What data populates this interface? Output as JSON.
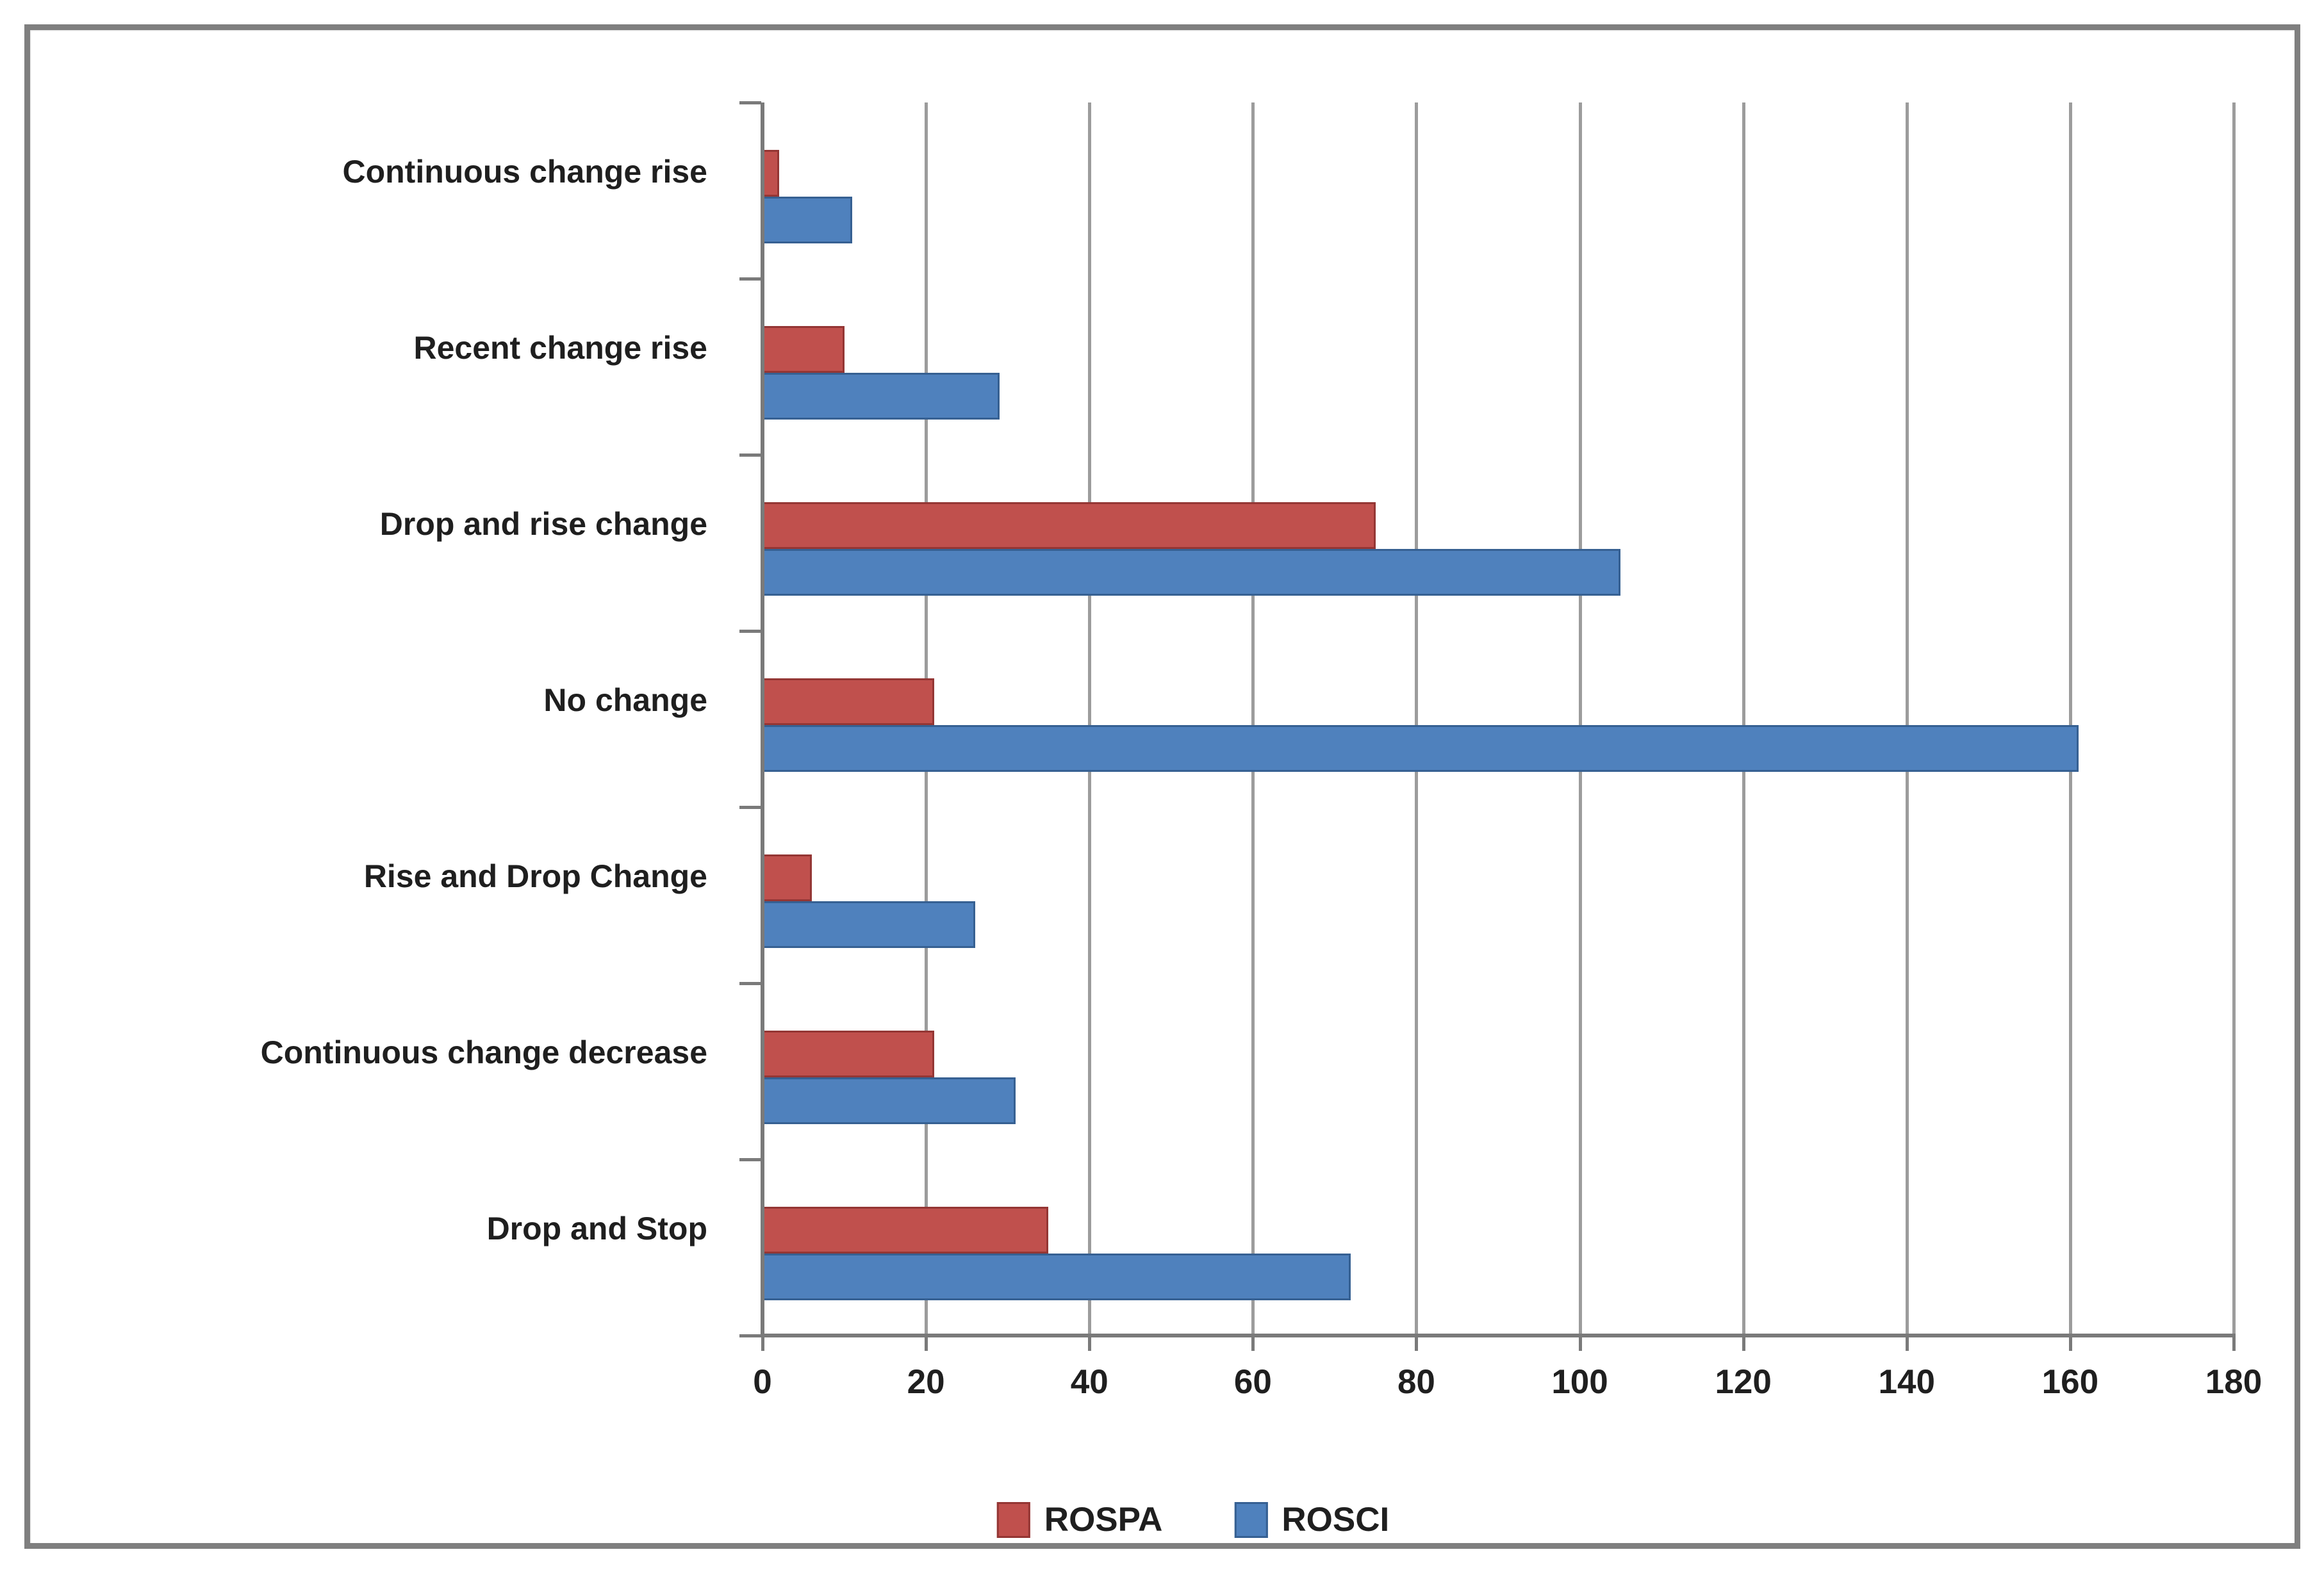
{
  "figure": {
    "background_color": "#ffffff",
    "border_color": "#7f7f7f"
  },
  "chart_data": {
    "type": "bar",
    "orientation": "horizontal",
    "title": "",
    "xlabel": "",
    "ylabel": "",
    "categories": [
      "Continuous change rise",
      "Recent change rise",
      "Drop and rise change",
      "No change",
      "Rise and Drop Change",
      "Continuous change decrease",
      "Drop and Stop"
    ],
    "series": [
      {
        "name": "ROSPA",
        "color": "#c0504d",
        "border_color": "#943634",
        "values": [
          2,
          10,
          75,
          21,
          6,
          21,
          35
        ]
      },
      {
        "name": "ROSCI",
        "color": "#4f81bd",
        "border_color": "#366092",
        "values": [
          11,
          29,
          105,
          161,
          26,
          31,
          72
        ]
      }
    ],
    "xlim": [
      0,
      180
    ],
    "x_tick_step": 20,
    "x_tick_labels": [
      "0",
      "20",
      "40",
      "60",
      "80",
      "100",
      "120",
      "140",
      "160",
      "180"
    ],
    "grid": true,
    "gridline_color": "#9c9c9c",
    "axis_color": "#7a7a7a",
    "text_color": "#1f1f1f",
    "legend_position": "bottom-center"
  }
}
